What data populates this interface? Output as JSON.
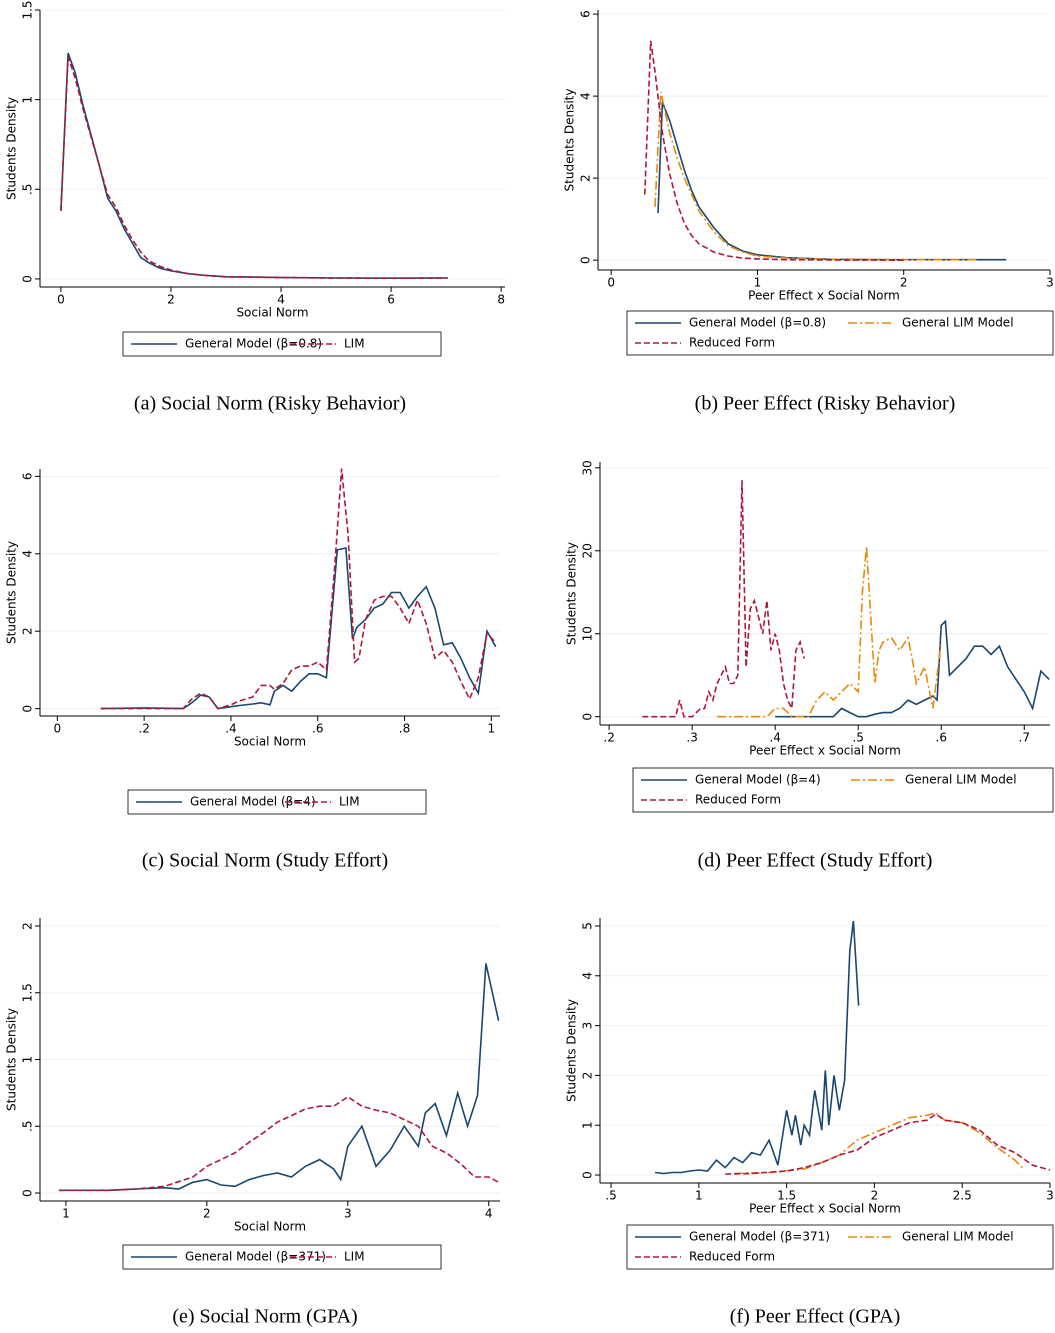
{
  "chart_data": [
    {
      "type": "line",
      "caption": "(a)  Social Norm (Risky Behavior)",
      "xlabel": "Social Norm",
      "ylabel": "Students Density",
      "xlim": [
        -0.38,
        8.07
      ],
      "ylim": [
        -0.045,
        1.5
      ],
      "xticks": [
        0,
        2,
        4,
        6,
        8
      ],
      "yticks": [
        0,
        {
          "value": 0.5,
          "label": ".5"
        },
        1,
        1.5
      ],
      "grid": true,
      "series": [
        {
          "name": "General Model (β=0.8)",
          "color": "#1a476f",
          "dash": "solid",
          "x": [
            0,
            0.13,
            0.26,
            0.4,
            0.55,
            0.7,
            0.85,
            1.0,
            1.15,
            1.3,
            1.45,
            1.6,
            1.8,
            2,
            2.3,
            2.6,
            3,
            3.5,
            4,
            5,
            6,
            7.03
          ],
          "values": [
            0.38,
            1.26,
            1.15,
            0.97,
            0.8,
            0.63,
            0.45,
            0.38,
            0.28,
            0.2,
            0.12,
            0.09,
            0.06,
            0.045,
            0.03,
            0.02,
            0.012,
            0.01,
            0.008,
            0.005,
            0.004,
            0.005
          ]
        },
        {
          "name": "LIM",
          "color": "#b0173b",
          "dash": "dash",
          "x": [
            0,
            0.13,
            0.26,
            0.4,
            0.55,
            0.7,
            0.85,
            1.0,
            1.15,
            1.3,
            1.45,
            1.6,
            1.8,
            2,
            2.3,
            2.6,
            3,
            3.5,
            4,
            5,
            6,
            7.03
          ],
          "values": [
            0.38,
            1.24,
            1.12,
            0.95,
            0.79,
            0.63,
            0.47,
            0.4,
            0.3,
            0.22,
            0.15,
            0.1,
            0.07,
            0.05,
            0.03,
            0.02,
            0.012,
            0.01,
            0.008,
            0.005,
            0.004,
            0.005
          ]
        }
      ]
    },
    {
      "type": "line",
      "caption": "(b)  Peer Effect (Risky Behavior)",
      "xlabel": "Peer Effect x Social Norm",
      "ylabel": "Students Density",
      "xlim": [
        -0.09,
        3.0
      ],
      "ylim": [
        -0.24,
        6.1
      ],
      "xticks": [
        0,
        1,
        2,
        3
      ],
      "yticks": [
        0,
        2,
        4,
        6
      ],
      "grid": true,
      "series": [
        {
          "name": "General Model (β=0.8)",
          "color": "#1a476f",
          "dash": "solid",
          "x": [
            0.32,
            0.35,
            0.4,
            0.45,
            0.5,
            0.55,
            0.6,
            0.7,
            0.8,
            0.9,
            1,
            1.2,
            1.5,
            2,
            2.7
          ],
          "values": [
            1.15,
            3.85,
            3.4,
            2.8,
            2.2,
            1.7,
            1.3,
            0.8,
            0.4,
            0.22,
            0.13,
            0.06,
            0.02,
            0.01,
            0.01
          ]
        },
        {
          "name": "General LIM Model",
          "color": "#e8890c",
          "dash": "dashdot",
          "x": [
            0.3,
            0.34,
            0.4,
            0.45,
            0.5,
            0.6,
            0.7,
            0.8,
            0.9,
            1,
            1.2,
            1.5,
            2,
            2.5
          ],
          "values": [
            1.3,
            4.1,
            3.1,
            2.5,
            2.0,
            1.2,
            0.7,
            0.35,
            0.2,
            0.1,
            0.05,
            0.02,
            0.01,
            0.01
          ]
        },
        {
          "name": "Reduced Form",
          "color": "#b0173b",
          "dash": "dash",
          "x": [
            0.23,
            0.27,
            0.3,
            0.35,
            0.4,
            0.45,
            0.5,
            0.55,
            0.6,
            0.7,
            0.8,
            0.9,
            1,
            1.2,
            1.5,
            2
          ],
          "values": [
            1.6,
            5.35,
            4.6,
            3.1,
            2.1,
            1.4,
            0.9,
            0.6,
            0.4,
            0.2,
            0.1,
            0.05,
            0.03,
            0.01,
            0.005,
            0
          ]
        }
      ]
    },
    {
      "type": "line",
      "caption": "(c)  Social Norm (Study Effort)",
      "xlabel": "Social Norm",
      "ylabel": "Students Density",
      "xlim": [
        -0.04,
        1.02
      ],
      "ylim": [
        -0.19,
        6.19
      ],
      "xticks": [
        0,
        {
          "value": 0.2,
          "label": ".2"
        },
        {
          "value": 0.4,
          "label": ".4"
        },
        {
          "value": 0.6,
          "label": ".6"
        },
        {
          "value": 0.8,
          "label": ".8"
        },
        1
      ],
      "yticks": [
        0,
        2,
        4,
        6
      ],
      "grid": true,
      "series": [
        {
          "name": "General Model (β=4)",
          "color": "#1a476f",
          "dash": "solid",
          "x": [
            0.1,
            0.2,
            0.29,
            0.31,
            0.33,
            0.35,
            0.37,
            0.4,
            0.42,
            0.45,
            0.47,
            0.49,
            0.5,
            0.52,
            0.54,
            0.56,
            0.58,
            0.6,
            0.62,
            0.645,
            0.665,
            0.68,
            0.69,
            0.71,
            0.73,
            0.75,
            0.77,
            0.79,
            0.81,
            0.83,
            0.85,
            0.87,
            0.89,
            0.91,
            0.93,
            0.95,
            0.97,
            0.99,
            1.01
          ],
          "values": [
            0,
            0.02,
            0,
            0.15,
            0.35,
            0.3,
            0,
            0.05,
            0.08,
            0.12,
            0.15,
            0.1,
            0.45,
            0.6,
            0.45,
            0.7,
            0.9,
            0.9,
            0.8,
            4.1,
            4.15,
            1.8,
            2.1,
            2.3,
            2.6,
            2.7,
            3.0,
            3.0,
            2.6,
            2.9,
            3.15,
            2.6,
            1.65,
            1.7,
            1.3,
            0.8,
            0.4,
            2.0,
            1.6
          ]
        },
        {
          "name": "LIM",
          "color": "#b0173b",
          "dash": "dash",
          "x": [
            0.1,
            0.2,
            0.29,
            0.31,
            0.33,
            0.35,
            0.37,
            0.4,
            0.42,
            0.45,
            0.47,
            0.49,
            0.5,
            0.52,
            0.54,
            0.56,
            0.58,
            0.6,
            0.62,
            0.64,
            0.655,
            0.67,
            0.685,
            0.695,
            0.71,
            0.73,
            0.75,
            0.77,
            0.79,
            0.81,
            0.83,
            0.85,
            0.87,
            0.89,
            0.91,
            0.93,
            0.95,
            0.97,
            0.99,
            1.01
          ],
          "values": [
            0,
            0,
            0,
            0.25,
            0.4,
            0.3,
            0,
            0.1,
            0.2,
            0.3,
            0.6,
            0.6,
            0.5,
            0.65,
            1,
            1.1,
            1.1,
            1.2,
            1.0,
            3.8,
            6.2,
            4.5,
            1.2,
            1.3,
            2.3,
            2.8,
            2.9,
            2.9,
            2.6,
            2.2,
            2.8,
            2.2,
            1.3,
            1.5,
            1.2,
            0.7,
            0.25,
            0.8,
            1.95,
            1.7
          ]
        }
      ]
    },
    {
      "type": "line",
      "caption": "(d)  Peer Effect (Study Effort)",
      "xlabel": "Peer Effect x Social Norm",
      "ylabel": "Students Density",
      "xlim": [
        0.189,
        0.731
      ],
      "ylim": [
        -1,
        30.7
      ],
      "xticks": [
        {
          "value": 0.2,
          "label": ".2"
        },
        {
          "value": 0.3,
          "label": ".3"
        },
        {
          "value": 0.4,
          "label": ".4"
        },
        {
          "value": 0.5,
          "label": ".5"
        },
        {
          "value": 0.6,
          "label": ".6"
        },
        {
          "value": 0.7,
          "label": ".7"
        }
      ],
      "yticks": [
        0,
        10,
        20,
        30
      ],
      "grid": true,
      "series": [
        {
          "name": "General Model (β=4)",
          "color": "#1a476f",
          "dash": "solid",
          "x": [
            0.4,
            0.45,
            0.47,
            0.48,
            0.49,
            0.5,
            0.51,
            0.52,
            0.53,
            0.54,
            0.55,
            0.56,
            0.57,
            0.58,
            0.59,
            0.595,
            0.6,
            0.605,
            0.61,
            0.62,
            0.63,
            0.64,
            0.65,
            0.66,
            0.67,
            0.68,
            0.69,
            0.7,
            0.71,
            0.72,
            0.73
          ],
          "values": [
            0,
            0,
            0,
            1,
            0.5,
            0,
            0,
            0.3,
            0.5,
            0.5,
            1,
            2,
            1.5,
            2,
            2.5,
            2,
            11,
            11.5,
            5,
            6,
            7,
            8.5,
            8.5,
            7.5,
            8.5,
            6,
            4.5,
            3,
            1,
            5.5,
            4.5
          ]
        },
        {
          "name": "General LIM Model",
          "color": "#e8890c",
          "dash": "dashdot",
          "x": [
            0.33,
            0.35,
            0.38,
            0.39,
            0.4,
            0.41,
            0.42,
            0.43,
            0.44,
            0.45,
            0.46,
            0.47,
            0.48,
            0.49,
            0.5,
            0.505,
            0.51,
            0.52,
            0.525,
            0.53,
            0.54,
            0.55,
            0.56,
            0.565,
            0.57,
            0.58,
            0.59,
            0.6
          ],
          "values": [
            0,
            0,
            0,
            0,
            1,
            1,
            0,
            0,
            0,
            2,
            3,
            2,
            3,
            4,
            3,
            15,
            20.5,
            4,
            8,
            9,
            9.5,
            8,
            9.5,
            7,
            4,
            6,
            1,
            9
          ]
        },
        {
          "name": "Reduced Form",
          "color": "#b0173b",
          "dash": "dash",
          "x": [
            0.24,
            0.27,
            0.28,
            0.285,
            0.29,
            0.3,
            0.31,
            0.315,
            0.32,
            0.325,
            0.33,
            0.335,
            0.34,
            0.345,
            0.35,
            0.355,
            0.36,
            0.365,
            0.37,
            0.375,
            0.38,
            0.385,
            0.39,
            0.395,
            0.4,
            0.405,
            0.41,
            0.415,
            0.42,
            0.425,
            0.43,
            0.435
          ],
          "values": [
            0,
            0,
            0,
            2,
            0,
            0,
            1,
            1,
            3,
            2,
            4,
            5,
            6,
            4,
            4,
            5,
            28.5,
            6,
            13,
            14,
            12,
            10,
            14,
            8,
            10,
            8,
            4,
            2,
            1,
            8,
            9,
            7
          ]
        }
      ]
    },
    {
      "type": "line",
      "caption": "(e)  Social Norm (GPA)",
      "xlabel": "Social Norm",
      "ylabel": "Students Density",
      "xlim": [
        0.816,
        4.08
      ],
      "ylim": [
        -0.06,
        2.06
      ],
      "xticks": [
        1,
        2,
        3,
        4
      ],
      "yticks": [
        0,
        {
          "value": 0.5,
          "label": ".5"
        },
        1,
        1.5,
        2
      ],
      "grid": true,
      "series": [
        {
          "name": "General Model (β=371)",
          "color": "#1a476f",
          "dash": "solid",
          "x": [
            0.95,
            1.1,
            1.3,
            1.5,
            1.7,
            1.8,
            1.9,
            2.0,
            2.1,
            2.2,
            2.3,
            2.4,
            2.5,
            2.6,
            2.7,
            2.8,
            2.9,
            2.95,
            3.0,
            3.1,
            3.2,
            3.3,
            3.4,
            3.5,
            3.55,
            3.62,
            3.7,
            3.78,
            3.85,
            3.92,
            3.98,
            4.07
          ],
          "values": [
            0.02,
            0.02,
            0.02,
            0.03,
            0.04,
            0.03,
            0.08,
            0.1,
            0.06,
            0.05,
            0.1,
            0.13,
            0.15,
            0.12,
            0.2,
            0.25,
            0.18,
            0.1,
            0.35,
            0.5,
            0.2,
            0.32,
            0.5,
            0.35,
            0.6,
            0.67,
            0.43,
            0.75,
            0.5,
            0.73,
            1.72,
            1.29
          ]
        },
        {
          "name": "LIM",
          "color": "#b0173b",
          "dash": "dash",
          "x": [
            0.95,
            1.1,
            1.3,
            1.5,
            1.7,
            1.9,
            2.0,
            2.1,
            2.2,
            2.3,
            2.4,
            2.5,
            2.6,
            2.7,
            2.8,
            2.9,
            3.0,
            3.1,
            3.2,
            3.3,
            3.4,
            3.5,
            3.6,
            3.7,
            3.8,
            3.9,
            4.0,
            4.07
          ],
          "values": [
            0.02,
            0.02,
            0.02,
            0.03,
            0.05,
            0.12,
            0.2,
            0.25,
            0.3,
            0.38,
            0.45,
            0.53,
            0.58,
            0.63,
            0.65,
            0.65,
            0.72,
            0.65,
            0.62,
            0.6,
            0.55,
            0.5,
            0.35,
            0.3,
            0.22,
            0.12,
            0.12,
            0.08
          ]
        }
      ]
    },
    {
      "type": "line",
      "caption": "(f)  Peer Effect (GPA)",
      "xlabel": "Peer Effect x Social Norm",
      "ylabel": "Students Density",
      "xlim": [
        0.437,
        3.0
      ],
      "ylim": [
        -0.16,
        5.16
      ],
      "xticks": [
        {
          "value": 0.5,
          "label": ".5"
        },
        1,
        1.5,
        2,
        2.5,
        3
      ],
      "yticks": [
        0,
        1,
        2,
        3,
        4,
        5
      ],
      "grid": true,
      "series": [
        {
          "name": "General Model (β=371)",
          "color": "#1a476f",
          "dash": "solid",
          "x": [
            0.75,
            0.8,
            0.85,
            0.9,
            0.95,
            1,
            1.05,
            1.1,
            1.15,
            1.2,
            1.25,
            1.3,
            1.35,
            1.4,
            1.45,
            1.5,
            1.53,
            1.55,
            1.58,
            1.6,
            1.63,
            1.66,
            1.7,
            1.72,
            1.74,
            1.77,
            1.8,
            1.83,
            1.86,
            1.88,
            1.91
          ],
          "values": [
            0.05,
            0.03,
            0.05,
            0.05,
            0.08,
            0.1,
            0.08,
            0.3,
            0.15,
            0.35,
            0.25,
            0.45,
            0.4,
            0.7,
            0.2,
            1.3,
            0.8,
            1.2,
            0.6,
            1.0,
            0.8,
            1.7,
            0.9,
            2.1,
            1.0,
            2.0,
            1.3,
            1.9,
            4.5,
            5.1,
            3.4
          ]
        },
        {
          "name": "General LIM Model",
          "color": "#e8890c",
          "dash": "dashdot",
          "x": [
            1.2,
            1.4,
            1.6,
            1.7,
            1.8,
            1.9,
            2.0,
            2.1,
            2.2,
            2.3,
            2.35,
            2.4,
            2.5,
            2.6,
            2.7,
            2.8,
            2.85
          ],
          "values": [
            0.03,
            0.05,
            0.12,
            0.25,
            0.4,
            0.7,
            0.85,
            1.0,
            1.15,
            1.2,
            1.25,
            1.1,
            1.05,
            0.85,
            0.55,
            0.3,
            0.12
          ]
        },
        {
          "name": "Reduced Form",
          "color": "#b0173b",
          "dash": "dash",
          "x": [
            1.15,
            1.3,
            1.5,
            1.6,
            1.7,
            1.8,
            1.9,
            2.0,
            2.1,
            2.2,
            2.3,
            2.35,
            2.4,
            2.5,
            2.6,
            2.7,
            2.8,
            2.9,
            3.0
          ],
          "values": [
            0.02,
            0.03,
            0.08,
            0.15,
            0.25,
            0.4,
            0.5,
            0.75,
            0.9,
            1.05,
            1.1,
            1.22,
            1.1,
            1.05,
            0.9,
            0.6,
            0.45,
            0.2,
            0.1
          ]
        }
      ]
    }
  ]
}
